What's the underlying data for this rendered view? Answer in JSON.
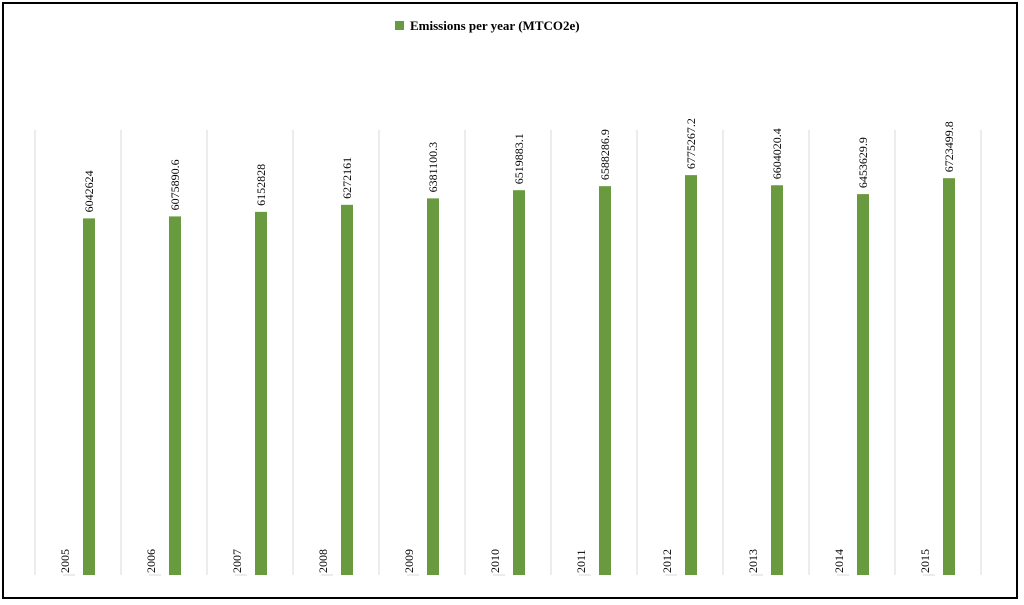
{
  "chart_data": {
    "type": "bar",
    "legend_position": "top",
    "grid": true,
    "colors": {
      "series": "#6a9a3f",
      "grid": "#d9d9d9",
      "frame": "#000000",
      "text": "#000000"
    },
    "categories": [
      "2005",
      "2006",
      "2007",
      "2008",
      "2009",
      "2010",
      "2011",
      "2012",
      "2013",
      "2014",
      "2015"
    ],
    "series": [
      {
        "name": "Emissions per year (MTCO2e)",
        "values": [
          6042624,
          6075890.6,
          6152828,
          6272161,
          6381100.3,
          6519883.1,
          6588286.9,
          6775267.2,
          6604020.4,
          6453629.9,
          6723499.8
        ],
        "labels": [
          "6042624",
          "6075890.6",
          "6152828",
          "6272161",
          "6381100.3",
          "6519883.1",
          "6588286.9",
          "6775267.2",
          "6604020.4",
          "6453629.9",
          "6723499.8"
        ]
      }
    ],
    "ylim": [
      0,
      7540000
    ]
  }
}
